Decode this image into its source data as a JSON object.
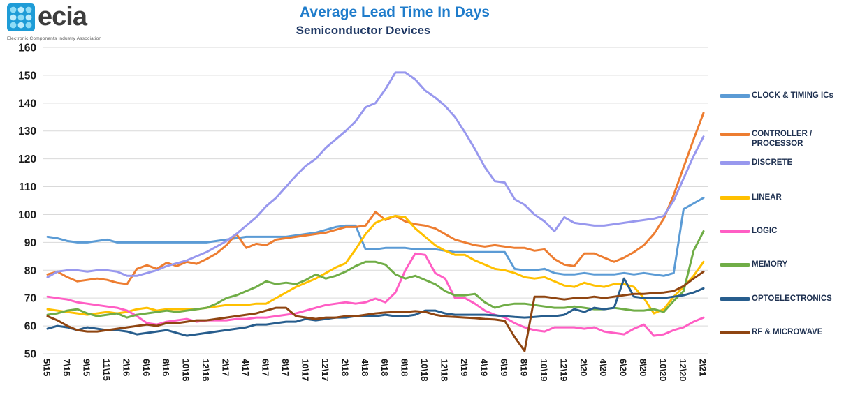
{
  "logo": {
    "brand": "ecia",
    "tagline": "Electronic Components Industry Association"
  },
  "header": {
    "title": "Average Lead Time In Days",
    "subtitle": "Semiconductor Devices"
  },
  "chart_data": {
    "type": "line",
    "title": "Average Lead Time In Days",
    "subtitle": "Semiconductor Devices",
    "ylabel": "",
    "xlabel": "",
    "ylim": [
      50,
      160
    ],
    "ytick_step": 10,
    "grid": "horizontal",
    "legend_position": "right",
    "x_tick_labels": [
      "5\\15",
      "7\\15",
      "9\\15",
      "11\\15",
      "2\\16",
      "6\\16",
      "8\\16",
      "10\\16",
      "12\\16",
      "2\\17",
      "4\\17",
      "6\\17",
      "8\\17",
      "10\\17",
      "12\\17",
      "2\\18",
      "4\\18",
      "6\\18",
      "8\\18",
      "10\\18",
      "12\\18",
      "2\\19",
      "4\\19",
      "6\\19",
      "8\\19",
      "10\\19",
      "12\\19",
      "2\\20",
      "4\\20",
      "6\\20",
      "8\\20",
      "10\\20",
      "12\\20",
      "2\\21"
    ],
    "points_per_tick": 2,
    "series": [
      {
        "name": "CLOCK & TIMING ICs",
        "color": "#5B9BD5",
        "values": [
          92,
          91.5,
          90.5,
          90,
          90,
          90.5,
          91,
          90,
          90,
          90,
          90,
          90,
          90,
          90,
          90,
          90,
          90,
          90.5,
          91,
          91.5,
          92,
          92,
          92,
          92,
          92,
          92.5,
          93,
          93.5,
          94.5,
          95.5,
          96,
          96,
          87.5,
          87.5,
          88,
          88,
          88,
          87.5,
          87.5,
          87.5,
          87,
          86.5,
          86.5,
          86.5,
          86.5,
          86.5,
          86.5,
          80.5,
          80,
          80,
          80.5,
          79,
          78.5,
          78.5,
          79,
          78.5,
          78.5,
          78.5,
          79,
          78.5,
          79,
          78.5,
          78,
          79,
          102,
          104,
          106
        ]
      },
      {
        "name": "CONTROLLER / PROCESSOR",
        "color": "#ED7D31",
        "values": [
          78.5,
          79.5,
          77.5,
          76,
          76.5,
          77,
          76.5,
          75.5,
          75,
          80.5,
          81.8,
          80.5,
          82.7,
          81.5,
          83,
          82.3,
          84,
          86,
          89,
          93,
          88,
          89.5,
          89,
          91,
          91.5,
          92,
          92.5,
          93,
          93.5,
          94.5,
          95.5,
          95.5,
          96,
          101,
          98,
          99.5,
          97.5,
          96.5,
          96,
          95,
          93,
          91,
          90,
          89,
          88.5,
          89,
          88.5,
          88,
          88,
          87,
          87.5,
          84,
          82,
          81.5,
          86,
          86,
          84.5,
          83,
          84.5,
          86.5,
          89,
          93,
          98.5,
          107,
          117,
          127,
          136.5
        ]
      },
      {
        "name": "DISCRETE",
        "color": "#9898EE",
        "values": [
          77.5,
          79.5,
          80,
          80,
          79.5,
          80,
          80,
          79.5,
          78,
          78,
          79,
          80,
          81.5,
          82.5,
          83.5,
          85,
          86.5,
          88.5,
          90.5,
          93,
          96,
          99,
          103,
          106,
          110,
          114,
          117.5,
          120,
          124,
          127,
          130,
          133.5,
          138.5,
          140,
          145,
          151,
          151,
          148.5,
          144.5,
          142,
          139,
          135,
          129.5,
          123.5,
          117,
          112,
          111.5,
          105.5,
          103.5,
          100,
          97.5,
          94,
          99,
          97,
          96.5,
          96,
          96,
          96.5,
          97,
          97.5,
          98,
          98.5,
          99.5,
          105,
          113,
          121,
          128
        ]
      },
      {
        "name": "LINEAR",
        "color": "#FFC000",
        "values": [
          66,
          65.5,
          65,
          64.5,
          64,
          64.5,
          65,
          64.5,
          65,
          66,
          66.5,
          65.5,
          66,
          66,
          66,
          66,
          66.5,
          67,
          67.5,
          67.5,
          67.5,
          68,
          68,
          70,
          72,
          74,
          75.5,
          77,
          79,
          81,
          82.5,
          87.5,
          93,
          97,
          98.5,
          99.5,
          99,
          95,
          92,
          89,
          87,
          85.5,
          85.5,
          83.5,
          82,
          80.5,
          80,
          79,
          77.5,
          77,
          77.5,
          76,
          74.5,
          74,
          75.5,
          74.5,
          74,
          75,
          75,
          74,
          70,
          64.5,
          66,
          70.5,
          74,
          78,
          83
        ]
      },
      {
        "name": "LOGIC",
        "color": "#FF5EC4",
        "values": [
          70.5,
          70,
          69.5,
          68.5,
          68,
          67.5,
          67,
          66.5,
          65.5,
          63.5,
          61,
          60.5,
          61.5,
          62,
          62.5,
          61.5,
          62,
          62,
          62,
          62.5,
          62.5,
          63,
          63,
          63.5,
          64,
          64.5,
          65.5,
          66.5,
          67.5,
          68,
          68.5,
          68,
          68.5,
          69.8,
          68.5,
          72,
          80,
          86,
          85.5,
          79,
          77,
          70,
          70,
          68,
          65.5,
          64,
          63,
          61,
          59.5,
          58.5,
          58,
          59.5,
          59.5,
          59.5,
          59,
          59.5,
          58,
          57.5,
          57,
          59,
          60.5,
          56.5,
          57,
          58.5,
          59.5,
          61.5,
          63
        ]
      },
      {
        "name": "MEMORY",
        "color": "#70AD47",
        "values": [
          64,
          64.5,
          65.5,
          66,
          64.5,
          63.5,
          64,
          64.5,
          63,
          64,
          64.5,
          65,
          65.5,
          65,
          65.5,
          66,
          66.5,
          68,
          70,
          71,
          72.5,
          74,
          76,
          75,
          75.5,
          75,
          76.5,
          78.5,
          77,
          78,
          79.5,
          81.5,
          83,
          83,
          82,
          78.5,
          77,
          78,
          76.5,
          75,
          72.5,
          71,
          71,
          71.5,
          68.5,
          66.5,
          67.5,
          68,
          68,
          67.5,
          67,
          66.5,
          66.5,
          67,
          66.5,
          66,
          66,
          66.5,
          66,
          65.5,
          65.5,
          66,
          65,
          69,
          72.5,
          87,
          94
        ]
      },
      {
        "name": "OPTOELECTRONICS",
        "color": "#275D8D",
        "values": [
          59,
          60,
          59.5,
          58.5,
          59.5,
          59,
          58.5,
          58.5,
          58,
          57,
          57.5,
          58,
          58.5,
          57.5,
          56.5,
          57,
          57.5,
          58,
          58.5,
          59,
          59.5,
          60.5,
          60.5,
          61,
          61.5,
          61.5,
          62.5,
          62,
          62.5,
          63,
          63,
          63.5,
          63.5,
          63.5,
          64,
          63.5,
          63.5,
          64,
          65.5,
          65.5,
          64.5,
          64,
          64,
          64,
          64,
          63.8,
          63.5,
          63.2,
          63,
          63.2,
          63.5,
          63.5,
          64,
          66,
          65,
          66.5,
          66,
          66.5,
          77,
          70.5,
          70,
          70,
          70,
          70.5,
          71,
          72,
          73.5
        ]
      },
      {
        "name": "RF & MICROWAVE",
        "color": "#8F4511",
        "values": [
          63.5,
          62,
          60,
          58.5,
          58,
          58,
          58.5,
          59,
          59.5,
          60,
          60.5,
          60,
          61,
          61,
          61.5,
          62,
          62,
          62.5,
          63,
          63.5,
          64,
          64.5,
          65.5,
          66.5,
          66.5,
          63.5,
          63,
          62.5,
          63,
          63,
          63.5,
          63.5,
          64,
          64.5,
          64.8,
          65,
          65,
          65.3,
          65,
          64,
          63.4,
          63.2,
          63,
          62.8,
          62.5,
          62.3,
          61.8,
          56,
          51,
          70.5,
          70.5,
          70,
          69.5,
          70,
          70,
          70.5,
          70,
          70.5,
          71,
          71.5,
          71.5,
          71.8,
          72,
          72.5,
          74.3,
          77,
          79.5
        ]
      }
    ]
  }
}
